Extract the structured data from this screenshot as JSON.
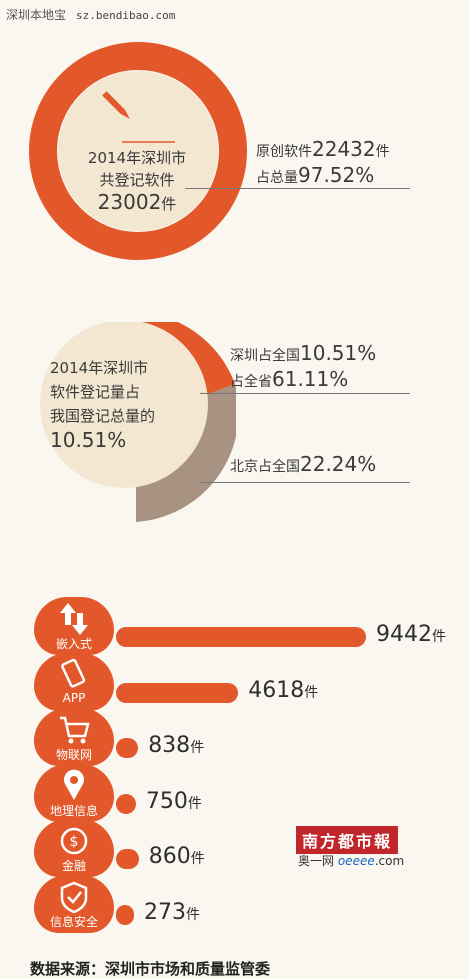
{
  "watermark": {
    "site": "深圳本地宝",
    "url": "sz.bendibao.com"
  },
  "section1": {
    "center_lines": [
      "2014年深圳市",
      "共登记软件"
    ],
    "center_total": "23002",
    "center_unit": "件",
    "stat1_label": "原创软件",
    "stat1_value": "22432",
    "stat1_unit": "件",
    "stat2_label": "占总量",
    "stat2_value": "97.52%"
  },
  "section2": {
    "center_lines": [
      "2014年深圳市",
      "软件登记量占",
      "我国登记总量的"
    ],
    "center_pct": "10.51%",
    "stat1_label": "深圳占全国",
    "stat1_value": "10.51%",
    "stat2_label": "占全省",
    "stat2_value": "61.11%",
    "stat3_label": "北京占全国",
    "stat3_value": "22.24%"
  },
  "chart_data": {
    "type": "bar",
    "categories": [
      "嵌入式",
      "APP",
      "物联网",
      "地理信息",
      "金融",
      "信息安全"
    ],
    "values": [
      9442,
      4618,
      838,
      750,
      860,
      273
    ],
    "unit": "件",
    "colors": {
      "bar": "#e2582a",
      "icon": "#e2582a"
    },
    "icons": [
      "upload-arrows-icon",
      "smartphone-icon",
      "shopping-cart-icon",
      "map-pin-icon",
      "coin-icon",
      "shield-check-icon"
    ]
  },
  "logo": {
    "name": "南方都市報",
    "sub1": "奥一网",
    "sub2": "oeeee",
    "sub3": ".com"
  },
  "footer": {
    "source": "数据来源：深圳市市场和质量监管委"
  },
  "colors": {
    "accent": "#e2582a",
    "grey": "#a89383",
    "cream": "#f3e7d2"
  }
}
